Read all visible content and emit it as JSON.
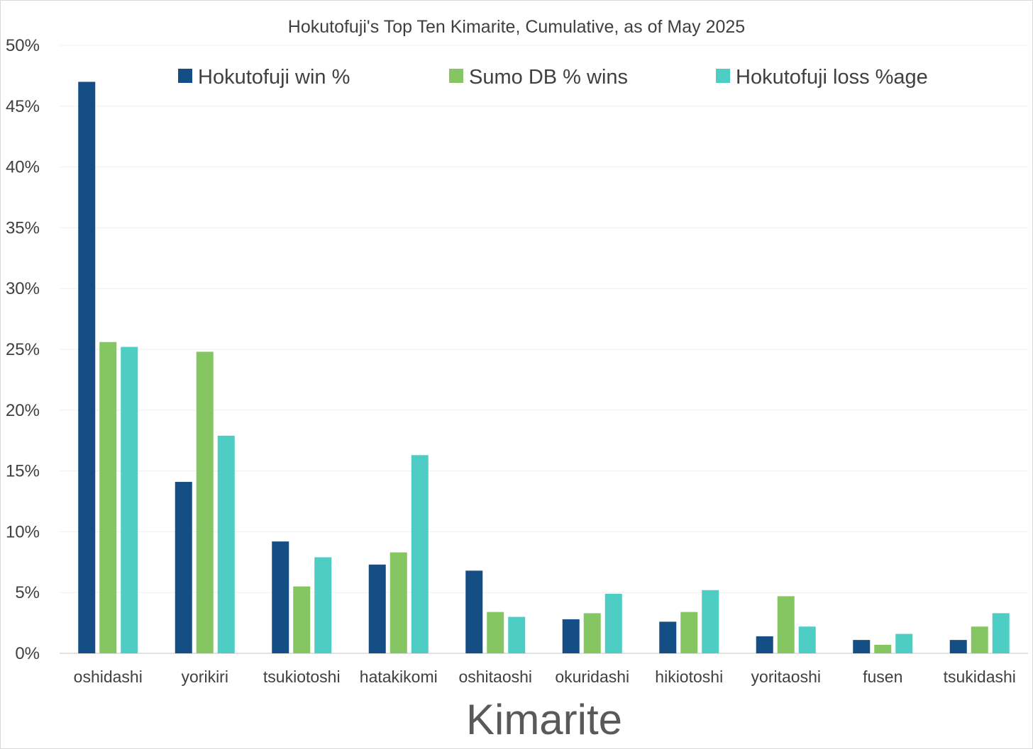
{
  "chart_data": {
    "type": "bar",
    "title": "Hokutofuji's Top Ten Kimarite, Cumulative, as of May 2025",
    "xlabel": "Kimarite",
    "ylabel": "",
    "ylim": [
      0,
      50
    ],
    "y_ticks": [
      "0%",
      "5%",
      "10%",
      "15%",
      "20%",
      "25%",
      "30%",
      "35%",
      "40%",
      "45%",
      "50%"
    ],
    "y_tick_values": [
      0,
      5,
      10,
      15,
      20,
      25,
      30,
      35,
      40,
      45,
      50
    ],
    "grid": true,
    "legend_position": "top",
    "categories": [
      "oshidashi",
      "yorikiri",
      "tsukiotoshi",
      "hatakikomi",
      "oshitaoshi",
      "okuridashi",
      "hikiotoshi",
      "yoritaoshi",
      "fusen",
      "tsukidashi"
    ],
    "series": [
      {
        "name": "Hokutofuji win %",
        "color": "#154e85",
        "values": [
          47.0,
          14.1,
          9.2,
          7.3,
          6.8,
          2.8,
          2.6,
          1.4,
          1.1,
          1.1
        ]
      },
      {
        "name": "Sumo DB % wins",
        "color": "#86c662",
        "values": [
          25.6,
          24.8,
          5.5,
          8.3,
          3.4,
          3.3,
          3.4,
          4.7,
          0.7,
          2.2
        ]
      },
      {
        "name": "Hokutofuji loss %age",
        "color": "#4ecdc4",
        "values": [
          25.2,
          17.9,
          7.9,
          16.3,
          3.0,
          4.9,
          5.2,
          2.2,
          1.6,
          3.3
        ]
      }
    ]
  }
}
